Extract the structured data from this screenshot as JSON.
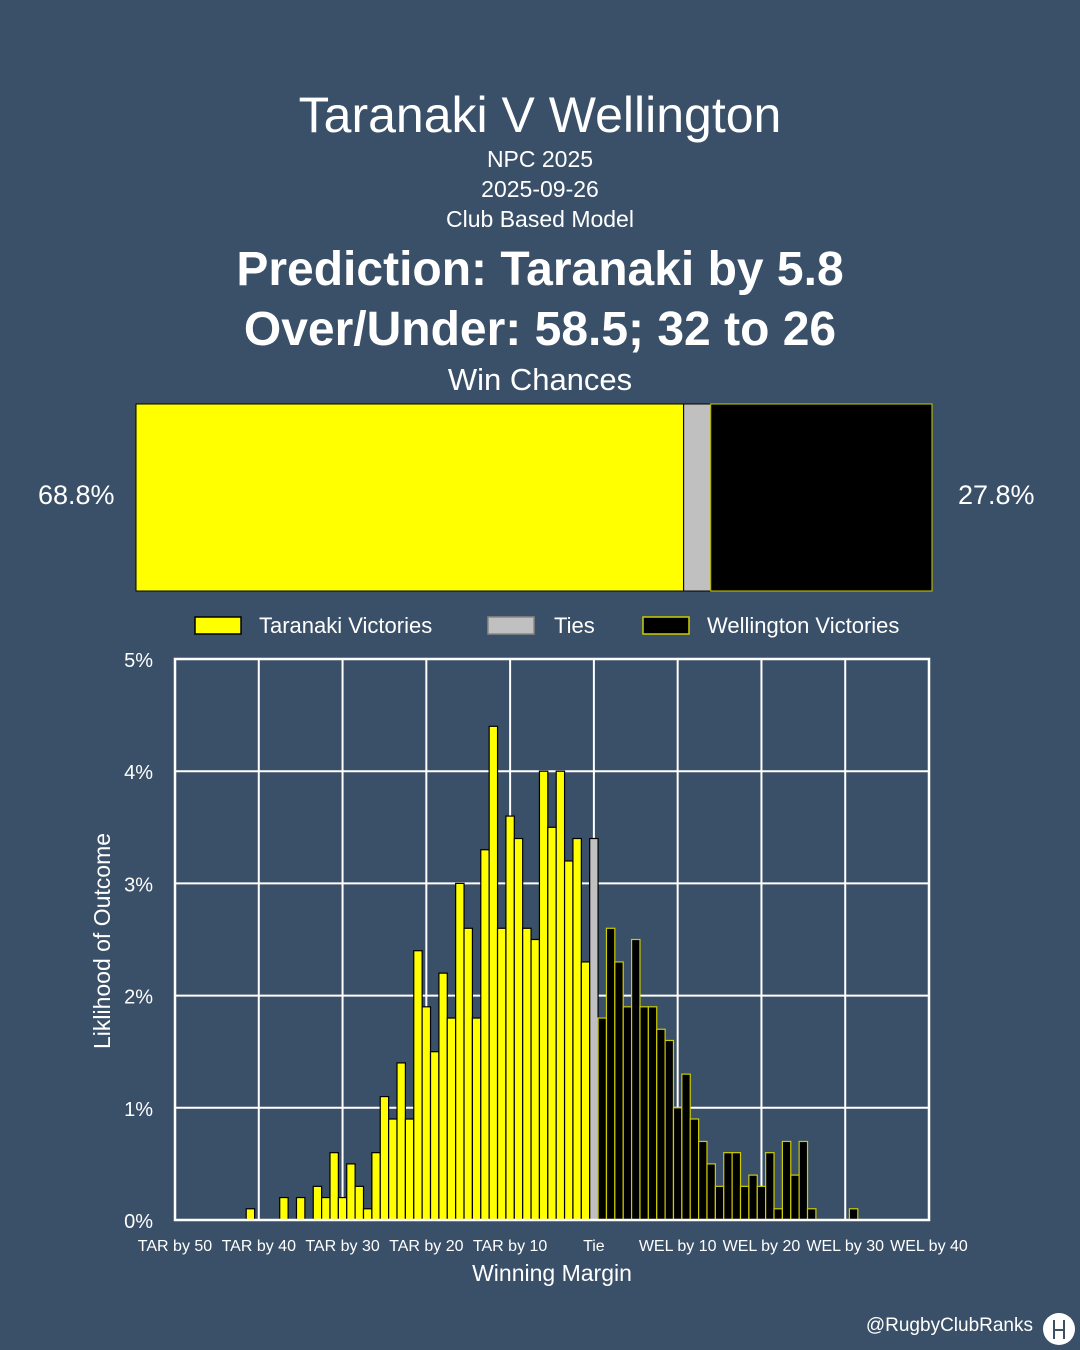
{
  "header": {
    "title": "Taranaki V Wellington",
    "competition": "NPC 2025",
    "date": "2025-09-26",
    "model": "Club Based Model",
    "prediction": "Prediction: Taranaki by 5.8",
    "over_under": "Over/Under: 58.5; 32 to 26",
    "win_chances_label": "Win Chances"
  },
  "win_chances": {
    "home_pct_label": "68.8%",
    "away_pct_label": "27.8%",
    "home": 68.8,
    "tie": 3.4,
    "away": 27.8
  },
  "legend": {
    "home": "Taranaki Victories",
    "tie": "Ties",
    "away": "Wellington Victories"
  },
  "colors": {
    "background": "#3a5068",
    "home": "#ffff00",
    "tie": "#c0c0c0",
    "away": "#000000",
    "away_edge": "#cccc00"
  },
  "footer": {
    "handle": "@RugbyClubRanks"
  },
  "chart_data": {
    "type": "bar",
    "xlabel": "Winning Margin",
    "ylabel": "Liklihood of Outcome",
    "ylim": [
      0,
      5
    ],
    "xlim": [
      -50,
      40
    ],
    "y_ticks": [
      "0%",
      "1%",
      "2%",
      "3%",
      "4%",
      "5%"
    ],
    "x_ticks": [
      {
        "value": -50,
        "label": "TAR by 50"
      },
      {
        "value": -40,
        "label": "TAR by 40"
      },
      {
        "value": -30,
        "label": "TAR by 30"
      },
      {
        "value": -20,
        "label": "TAR by 20"
      },
      {
        "value": -10,
        "label": "TAR by 10"
      },
      {
        "value": 0,
        "label": "Tie"
      },
      {
        "value": 10,
        "label": "WEL by 10"
      },
      {
        "value": 20,
        "label": "WEL by 20"
      },
      {
        "value": 30,
        "label": "WEL by 30"
      },
      {
        "value": 40,
        "label": "WEL by 40"
      }
    ],
    "grid": true,
    "legend_position": "top",
    "series": [
      {
        "name": "Taranaki Victories",
        "color": "#ffff00",
        "points": [
          [
            -41,
            0.1
          ],
          [
            -37,
            0.2
          ],
          [
            -35,
            0.2
          ],
          [
            -33,
            0.3
          ],
          [
            -32,
            0.2
          ],
          [
            -31,
            0.6
          ],
          [
            -30,
            0.2
          ],
          [
            -29,
            0.5
          ],
          [
            -28,
            0.3
          ],
          [
            -27,
            0.1
          ],
          [
            -26,
            0.6
          ],
          [
            -25,
            1.1
          ],
          [
            -24,
            0.9
          ],
          [
            -23,
            1.4
          ],
          [
            -22,
            0.9
          ],
          [
            -21,
            2.4
          ],
          [
            -20,
            1.9
          ],
          [
            -19,
            1.5
          ],
          [
            -18,
            2.2
          ],
          [
            -17,
            1.8
          ],
          [
            -16,
            3.0
          ],
          [
            -15,
            2.6
          ],
          [
            -14,
            1.8
          ],
          [
            -13,
            3.3
          ],
          [
            -12,
            4.4
          ],
          [
            -11,
            2.6
          ],
          [
            -10,
            3.6
          ],
          [
            -9,
            3.4
          ],
          [
            -8,
            2.6
          ],
          [
            -7,
            2.5
          ],
          [
            -6,
            4.0
          ],
          [
            -5,
            3.5
          ],
          [
            -4,
            4.0
          ],
          [
            -3,
            3.2
          ],
          [
            -2,
            3.4
          ],
          [
            -1,
            2.3
          ],
          [
            -0.5,
            3.1
          ]
        ]
      },
      {
        "name": "Ties",
        "color": "#c0c0c0",
        "points": [
          [
            0,
            3.4
          ]
        ]
      },
      {
        "name": "Wellington Victories",
        "color": "#000000",
        "points": [
          [
            1,
            1.8
          ],
          [
            2,
            2.6
          ],
          [
            3,
            2.3
          ],
          [
            4,
            1.9
          ],
          [
            5,
            2.5
          ],
          [
            6,
            1.9
          ],
          [
            7,
            1.9
          ],
          [
            8,
            1.7
          ],
          [
            9,
            1.6
          ],
          [
            10,
            1.0
          ],
          [
            11,
            1.3
          ],
          [
            12,
            0.9
          ],
          [
            13,
            0.7
          ],
          [
            14,
            0.5
          ],
          [
            15,
            0.3
          ],
          [
            16,
            0.6
          ],
          [
            17,
            0.6
          ],
          [
            18,
            0.3
          ],
          [
            19,
            0.4
          ],
          [
            20,
            0.3
          ],
          [
            21,
            0.6
          ],
          [
            22,
            0.1
          ],
          [
            23,
            0.7
          ],
          [
            24,
            0.4
          ],
          [
            25,
            0.7
          ],
          [
            26,
            0.1
          ],
          [
            31,
            0.1
          ]
        ]
      }
    ]
  }
}
